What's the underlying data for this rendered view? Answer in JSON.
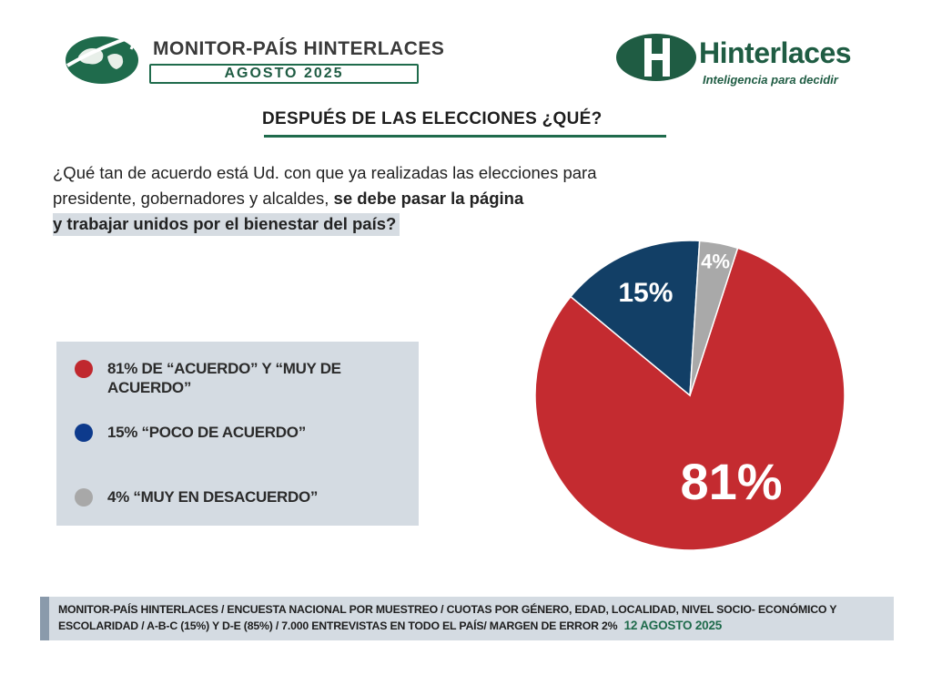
{
  "header": {
    "monitor_title": "MONITOR-PAÍS HINTERLACES",
    "monitor_date": "AGOSTO 2025",
    "brand_name": "Hinterlaces",
    "brand_tagline": "Inteligencia para decidir"
  },
  "section_title": "DESPUÉS DE LAS ELECCIONES ¿QUÉ?",
  "question": {
    "part1": "¿Qué tan de acuerdo está Ud. con que ya realizadas las elecciones para presidente, gobernadores y alcaldes, ",
    "part2": "se debe pasar la página",
    "part3": "y trabajar unidos por el bienestar del país?"
  },
  "legend": [
    {
      "text": "81% DE “ACUERDO” Y “MUY DE ACUERDO”",
      "color": "#c0282e"
    },
    {
      "text": "15% “POCO DE ACUERDO”",
      "color": "#0d3a8c"
    },
    {
      "text": "4% “MUY EN DESACUERDO”",
      "color": "#a8a8a8"
    }
  ],
  "chart_data": {
    "type": "pie",
    "slices": [
      {
        "label": "81%",
        "value": 81,
        "color": "#c42b30"
      },
      {
        "label": "15%",
        "value": 15,
        "color": "#123f66"
      },
      {
        "label": "4%",
        "value": 4,
        "color": "#a9a9a9"
      }
    ]
  },
  "footer": {
    "text": "MONITOR-PAÍS HINTERLACES / ENCUESTA NACIONAL POR MUESTREO / CUOTAS POR GÉNERO, EDAD, LOCALIDAD, NIVEL SOCIO- ECONÓMICO Y ESCOLARIDAD / A-B-C (15%) Y D-E (85%) / 7.000 ENTREVISTAS EN TODO EL PAÍS/ MARGEN DE ERROR 2%",
    "date": "12 AGOSTO 2025"
  }
}
